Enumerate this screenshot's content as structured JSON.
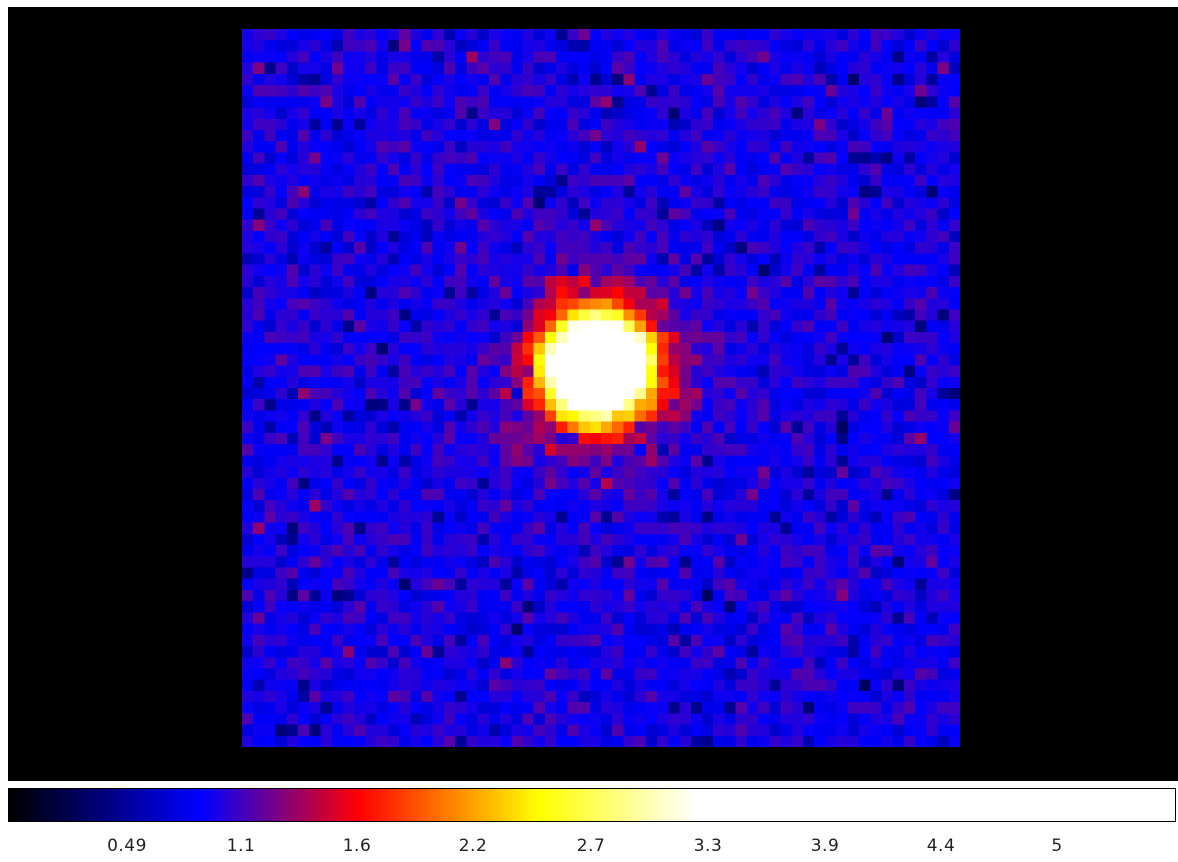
{
  "image": {
    "colormap": "bb",
    "grid_size": 64,
    "source": {
      "label": "bright compact source",
      "peak_fraction_of_scale": 1.0
    }
  },
  "colorbar": {
    "colormap_stops": [
      "#000000",
      "#0000ff",
      "#ff0000",
      "#ffff00",
      "#ffffff"
    ],
    "ticks": [
      {
        "label": "0.49",
        "value": 0.49
      },
      {
        "label": "1.1",
        "value": 1.1
      },
      {
        "label": "1.6",
        "value": 1.6
      },
      {
        "label": "2.2",
        "value": 2.2
      },
      {
        "label": "2.7",
        "value": 2.7
      },
      {
        "label": "3.3",
        "value": 3.3
      },
      {
        "label": "3.9",
        "value": 3.9
      },
      {
        "label": "4.4",
        "value": 4.4
      },
      {
        "label": "5",
        "value": 5
      }
    ],
    "range": [
      0,
      5.6
    ]
  }
}
